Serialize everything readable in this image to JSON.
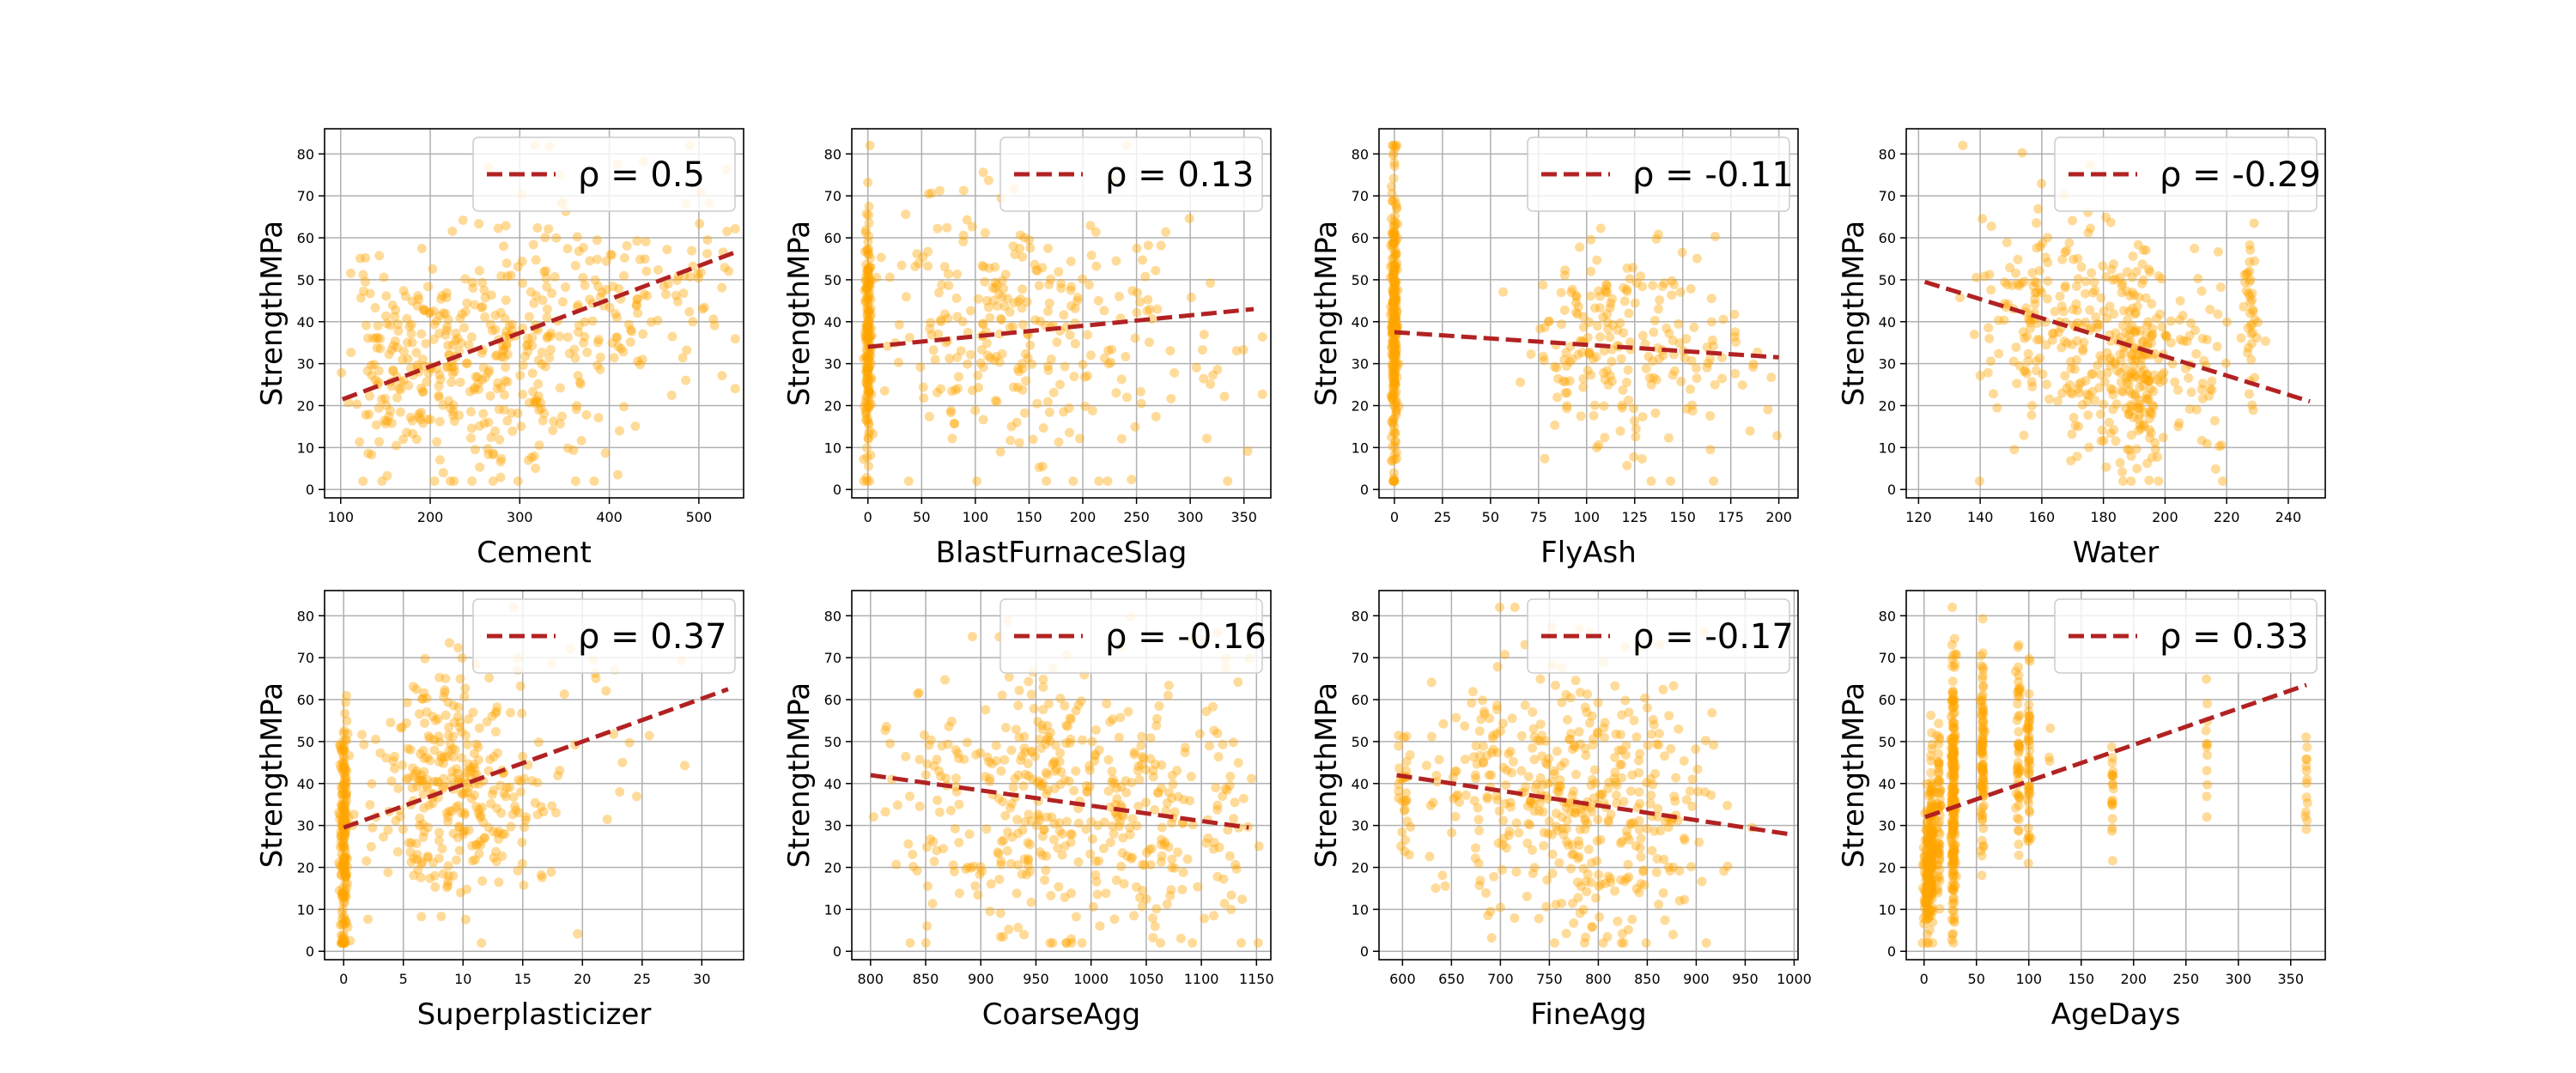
{
  "style": {
    "point_color": "#ffa500",
    "fit_color": "#b22222",
    "grid_color": "#b0b0b0"
  },
  "chart_data": [
    {
      "type": "scatter",
      "xlabel": "Cement",
      "ylabel": "StrengthMPa",
      "xlim": [
        82,
        550
      ],
      "ylim": [
        -2,
        86
      ],
      "xticks": [
        100,
        200,
        300,
        400,
        500
      ],
      "yticks": [
        0,
        10,
        20,
        30,
        40,
        50,
        60,
        70,
        80
      ],
      "legend_label": "ρ = 0.5",
      "legend": "top-right",
      "grid": true,
      "fit": {
        "x": [
          102,
          540
        ],
        "y": [
          21.5,
          56.5
        ]
      },
      "clusters": [
        {
          "cx": 160,
          "cy": 28,
          "sx": 25,
          "sy": 12,
          "n": 120
        },
        {
          "cx": 250,
          "cy": 30,
          "sx": 40,
          "sy": 15,
          "n": 180
        },
        {
          "cx": 330,
          "cy": 38,
          "sx": 40,
          "sy": 16,
          "n": 120
        },
        {
          "cx": 420,
          "cy": 48,
          "sx": 35,
          "sy": 15,
          "n": 60
        },
        {
          "cx": 500,
          "cy": 52,
          "sx": 25,
          "sy": 14,
          "n": 40
        }
      ],
      "seed": 11
    },
    {
      "type": "scatter",
      "xlabel": "BlastFurnaceSlag",
      "ylabel": "StrengthMPa",
      "xlim": [
        -15,
        375
      ],
      "ylim": [
        -2,
        86
      ],
      "xticks": [
        0,
        50,
        100,
        150,
        200,
        250,
        300,
        350
      ],
      "yticks": [
        0,
        10,
        20,
        30,
        40,
        50,
        60,
        70,
        80
      ],
      "legend_label": "ρ = 0.13",
      "legend": "top-right",
      "grid": true,
      "fit": {
        "x": [
          0,
          359
        ],
        "y": [
          34,
          43
        ]
      },
      "clusters": [
        {
          "cx": 0,
          "cy": 35,
          "sx": 1.5,
          "sy": 15,
          "n": 180
        },
        {
          "cx": 100,
          "cy": 38,
          "sx": 40,
          "sy": 16,
          "n": 170
        },
        {
          "cx": 190,
          "cy": 38,
          "sx": 45,
          "sy": 16,
          "n": 100
        },
        {
          "cx": 290,
          "cy": 35,
          "sx": 40,
          "sy": 15,
          "n": 25
        }
      ],
      "seed": 23
    },
    {
      "type": "scatter",
      "xlabel": "FlyAsh",
      "ylabel": "StrengthMPa",
      "xlim": [
        -8,
        210
      ],
      "ylim": [
        -2,
        86
      ],
      "xticks": [
        0,
        25,
        50,
        75,
        100,
        125,
        150,
        175,
        200
      ],
      "yticks": [
        0,
        10,
        20,
        30,
        40,
        50,
        60,
        70,
        80
      ],
      "legend_label": "ρ = -0.11",
      "legend": "top-right",
      "grid": true,
      "fit": {
        "x": [
          0,
          200
        ],
        "y": [
          37.5,
          31.5
        ]
      },
      "clusters": [
        {
          "cx": 0,
          "cy": 40,
          "sx": 0.8,
          "sy": 17,
          "n": 280
        },
        {
          "cx": 100,
          "cy": 35,
          "sx": 15,
          "sy": 12,
          "n": 100
        },
        {
          "cx": 130,
          "cy": 33,
          "sx": 15,
          "sy": 13,
          "n": 90
        },
        {
          "cx": 175,
          "cy": 30,
          "sx": 15,
          "sy": 12,
          "n": 30
        }
      ],
      "seed": 37
    },
    {
      "type": "scatter",
      "xlabel": "Water",
      "ylabel": "StrengthMPa",
      "xlim": [
        116,
        252
      ],
      "ylim": [
        -2,
        86
      ],
      "xticks": [
        120,
        140,
        160,
        180,
        200,
        220,
        240
      ],
      "yticks": [
        0,
        10,
        20,
        30,
        40,
        50,
        60,
        70,
        80
      ],
      "legend_label": "ρ = -0.29",
      "legend": "top-right",
      "grid": true,
      "fit": {
        "x": [
          122,
          247
        ],
        "y": [
          49.5,
          21
        ]
      },
      "clusters": [
        {
          "cx": 160,
          "cy": 42,
          "sx": 10,
          "sy": 15,
          "n": 140
        },
        {
          "cx": 185,
          "cy": 33,
          "sx": 10,
          "sy": 15,
          "n": 200
        },
        {
          "cx": 192,
          "cy": 28,
          "sx": 3,
          "sy": 13,
          "n": 80
        },
        {
          "cx": 228,
          "cy": 42,
          "sx": 1.2,
          "sy": 10,
          "n": 40
        },
        {
          "cx": 212,
          "cy": 28,
          "sx": 8,
          "sy": 12,
          "n": 40
        }
      ],
      "seed": 41
    },
    {
      "type": "scatter",
      "xlabel": "Superplasticizer",
      "ylabel": "StrengthMPa",
      "xlim": [
        -1.6,
        33.5
      ],
      "ylim": [
        -2,
        86
      ],
      "xticks": [
        0,
        5,
        10,
        15,
        20,
        25,
        30
      ],
      "yticks": [
        0,
        10,
        20,
        30,
        40,
        50,
        60,
        70,
        80
      ],
      "legend_label": "ρ = 0.37",
      "legend": "top-right",
      "grid": true,
      "fit": {
        "x": [
          0,
          32.2
        ],
        "y": [
          29.5,
          62.5
        ]
      },
      "clusters": [
        {
          "cx": 0,
          "cy": 27,
          "sx": 0.15,
          "sy": 14,
          "n": 200
        },
        {
          "cx": 8,
          "cy": 38,
          "sx": 3,
          "sy": 14,
          "n": 220
        },
        {
          "cx": 12,
          "cy": 42,
          "sx": 3,
          "sy": 15,
          "n": 100
        },
        {
          "cx": 20,
          "cy": 45,
          "sx": 5,
          "sy": 14,
          "n": 25
        }
      ],
      "seed": 53
    },
    {
      "type": "scatter",
      "xlabel": "CoarseAgg",
      "ylabel": "StrengthMPa",
      "xlim": [
        783,
        1163
      ],
      "ylim": [
        -2,
        86
      ],
      "xticks": [
        800,
        850,
        900,
        950,
        1000,
        1050,
        1100,
        1150
      ],
      "yticks": [
        0,
        10,
        20,
        30,
        40,
        50,
        60,
        70,
        80
      ],
      "legend_label": "ρ = -0.16",
      "legend": "top-right",
      "grid": true,
      "fit": {
        "x": [
          800,
          1143
        ],
        "y": [
          42,
          29.5
        ]
      },
      "clusters": [
        {
          "cx": 950,
          "cy": 38,
          "sx": 40,
          "sy": 16,
          "n": 220
        },
        {
          "cx": 1050,
          "cy": 32,
          "sx": 35,
          "sy": 15,
          "n": 150
        },
        {
          "cx": 860,
          "cy": 36,
          "sx": 25,
          "sy": 15,
          "n": 60
        },
        {
          "cx": 1120,
          "cy": 32,
          "sx": 15,
          "sy": 16,
          "n": 40
        }
      ],
      "seed": 67
    },
    {
      "type": "scatter",
      "xlabel": "FineAgg",
      "ylabel": "StrengthMPa",
      "xlim": [
        576,
        1004
      ],
      "ylim": [
        -2,
        86
      ],
      "xticks": [
        600,
        650,
        700,
        750,
        800,
        850,
        900,
        950,
        1000
      ],
      "yticks": [
        0,
        10,
        20,
        30,
        40,
        50,
        60,
        70,
        80
      ],
      "legend_label": "ρ = -0.17",
      "legend": "top-right",
      "grid": true,
      "fit": {
        "x": [
          594,
          993
        ],
        "y": [
          42,
          28
        ]
      },
      "clusters": [
        {
          "cx": 770,
          "cy": 36,
          "sx": 45,
          "sy": 16,
          "n": 260
        },
        {
          "cx": 680,
          "cy": 38,
          "sx": 30,
          "sy": 16,
          "n": 80
        },
        {
          "cx": 860,
          "cy": 34,
          "sx": 35,
          "sy": 16,
          "n": 110
        },
        {
          "cx": 600,
          "cy": 40,
          "sx": 5,
          "sy": 10,
          "n": 30
        }
      ],
      "seed": 79
    },
    {
      "type": "scatter",
      "xlabel": "AgeDays",
      "ylabel": "StrengthMPa",
      "xlim": [
        -17,
        383
      ],
      "ylim": [
        -2,
        86
      ],
      "xticks": [
        0,
        50,
        100,
        150,
        200,
        250,
        300,
        350
      ],
      "yticks": [
        0,
        10,
        20,
        30,
        40,
        50,
        60,
        70,
        80
      ],
      "legend_label": "ρ = 0.33",
      "legend": "top-right",
      "grid": true,
      "fit": {
        "x": [
          1,
          365
        ],
        "y": [
          32,
          63.5
        ]
      },
      "clusters": [
        {
          "cx": 3,
          "cy": 18,
          "sx": 2,
          "sy": 8,
          "n": 120
        },
        {
          "cx": 7,
          "cy": 25,
          "sx": 1,
          "sy": 10,
          "n": 120
        },
        {
          "cx": 14,
          "cy": 30,
          "sx": 1,
          "sy": 12,
          "n": 60
        },
        {
          "cx": 28,
          "cy": 36,
          "sx": 1,
          "sy": 15,
          "n": 220
        },
        {
          "cx": 56,
          "cy": 50,
          "sx": 0.8,
          "sy": 14,
          "n": 90
        },
        {
          "cx": 90,
          "cy": 47,
          "sx": 1,
          "sy": 13,
          "n": 50
        },
        {
          "cx": 100,
          "cy": 45,
          "sx": 0.8,
          "sy": 13,
          "n": 50
        },
        {
          "cx": 120,
          "cy": 42,
          "sx": 0.5,
          "sy": 5,
          "n": 3
        },
        {
          "cx": 180,
          "cy": 40,
          "sx": 0.5,
          "sy": 8,
          "n": 20
        },
        {
          "cx": 270,
          "cy": 48,
          "sx": 0.5,
          "sy": 8,
          "n": 12
        },
        {
          "cx": 365,
          "cy": 42,
          "sx": 0.5,
          "sy": 8,
          "n": 14
        }
      ],
      "seed": 97
    }
  ]
}
